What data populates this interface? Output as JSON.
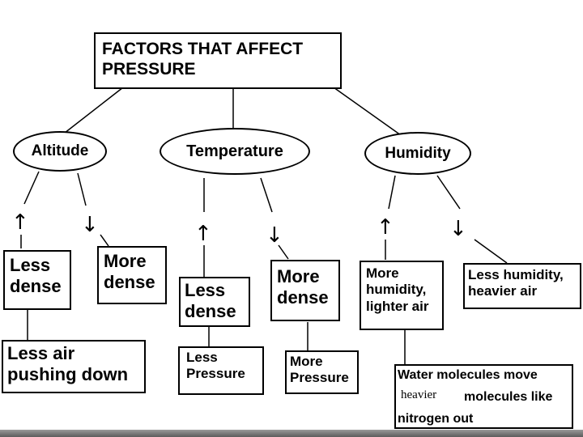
{
  "title": "FACTORS THAT AFFECT\nPRESSURE",
  "factors": {
    "altitude": "Altitude",
    "temperature": "Temperature",
    "humidity": "Humidity"
  },
  "arrows": {
    "up": "↑",
    "down": "↓"
  },
  "altitude": {
    "up_box": "Less\ndense",
    "down_box": "More\ndense",
    "result": "Less air\npushing down"
  },
  "temperature": {
    "up_box": "Less\ndense",
    "down_box": "More\ndense",
    "up_result": "Less\nPressure",
    "down_result": "More\nPressure"
  },
  "humidity": {
    "up_box": "More\nhumidity,\nlighter air",
    "down_box": "Less humidity,\nheavier air",
    "explanation": {
      "line1": "Water molecules move",
      "line2_inserted": "heavier",
      "line2": "molecules like",
      "line3": "nitrogen out"
    }
  }
}
